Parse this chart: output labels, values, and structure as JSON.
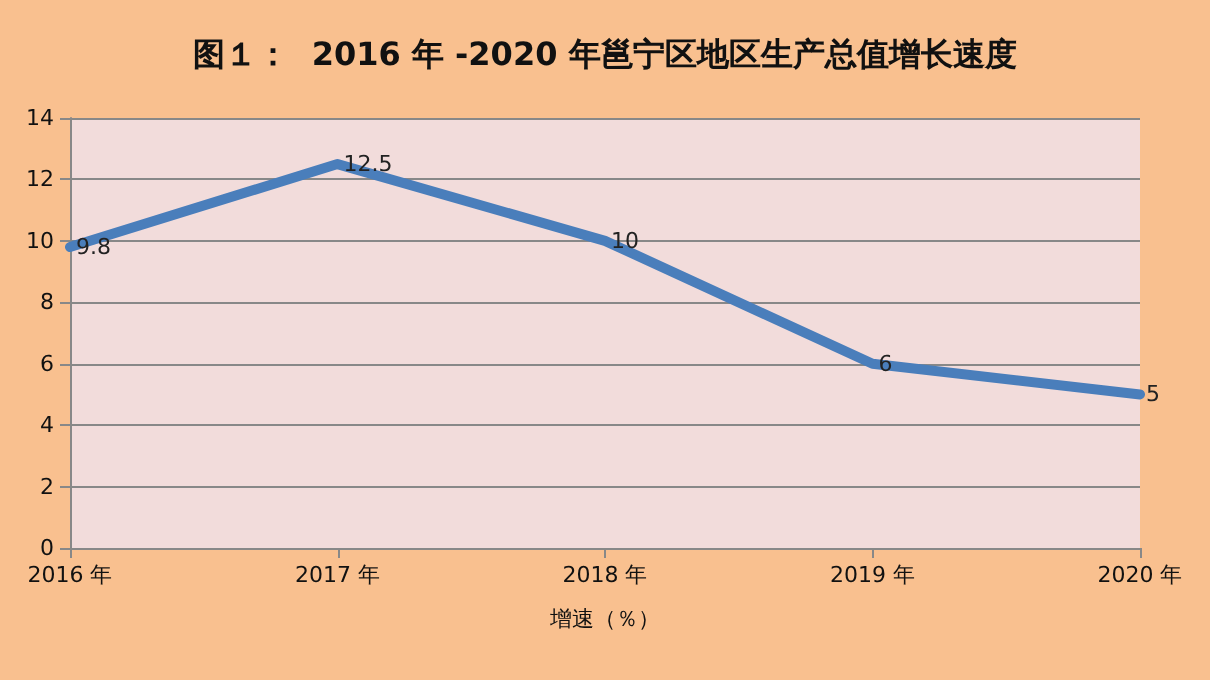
{
  "chart_data": {
    "type": "line",
    "title": "图１：  2016 年 -2020 年邕宁区地区生产总值增长速度",
    "xlabel": "增速（％）",
    "categories": [
      "2016 年",
      "2017 年",
      "2018 年",
      "2019 年",
      "2020 年"
    ],
    "series": [
      {
        "color": "#4a7ebb",
        "values": [
          9.8,
          12.5,
          10,
          6,
          5
        ]
      }
    ],
    "ylim": [
      0,
      14
    ],
    "yticks": [
      0,
      2,
      4,
      6,
      8,
      10,
      12,
      14
    ],
    "grid": "y",
    "data_labels": true,
    "marker": "none",
    "line_style": "solid"
  }
}
